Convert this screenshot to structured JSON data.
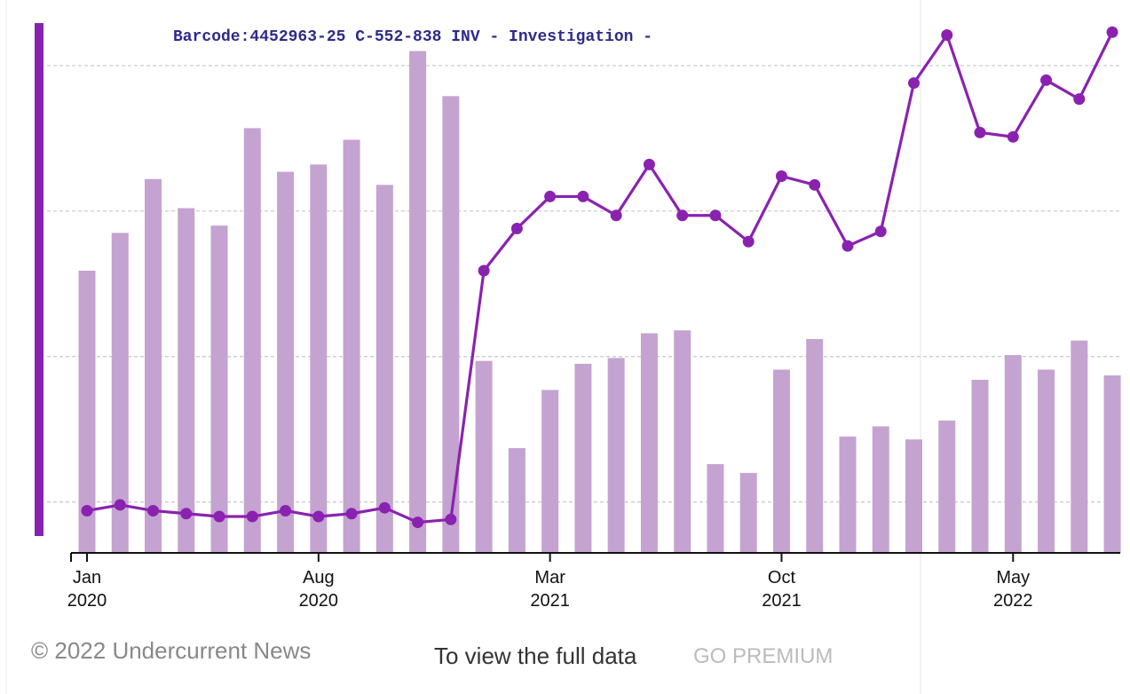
{
  "chart_data": {
    "type": "combo",
    "annotation": "Barcode:4452963-25 C-552-838 INV - Investigation  -",
    "categories": [
      "Jan 2020",
      null,
      null,
      null,
      null,
      null,
      null,
      "Aug 2020",
      null,
      null,
      null,
      null,
      null,
      null,
      "Mar 2021",
      null,
      null,
      null,
      null,
      null,
      null,
      "Oct 2021",
      null,
      null,
      null,
      null,
      null,
      null,
      "May 2022",
      null,
      null,
      null
    ],
    "series": [
      {
        "type": "bar",
        "color": "#c4a3d1",
        "values": [
          2.59,
          2.85,
          3.22,
          3.02,
          2.9,
          3.57,
          3.27,
          3.32,
          3.49,
          3.18,
          4.1,
          3.79,
          1.97,
          1.37,
          1.77,
          1.95,
          1.99,
          2.16,
          2.18,
          1.26,
          1.2,
          1.91,
          2.12,
          1.45,
          1.52,
          1.43,
          1.56,
          1.84,
          2.01,
          1.91,
          2.11,
          1.87
        ]
      },
      {
        "type": "line",
        "color": "#8a22b0",
        "values": [
          0.94,
          0.98,
          0.94,
          0.92,
          0.9,
          0.9,
          0.94,
          0.9,
          0.92,
          0.96,
          0.86,
          0.88,
          2.59,
          2.88,
          3.1,
          3.1,
          2.97,
          3.32,
          2.97,
          2.97,
          2.79,
          3.24,
          3.18,
          2.76,
          2.86,
          3.88,
          4.21,
          3.54,
          3.51,
          3.9,
          3.77,
          4.23
        ]
      }
    ],
    "ylim": [
      0.65,
      4.39
    ],
    "yticks": [
      1,
      2,
      3,
      4
    ],
    "grid": true
  },
  "footer": {
    "credit": "© 2022 Undercurrent News",
    "prompt": "To view the full data",
    "cta": "GO PREMIUM"
  }
}
